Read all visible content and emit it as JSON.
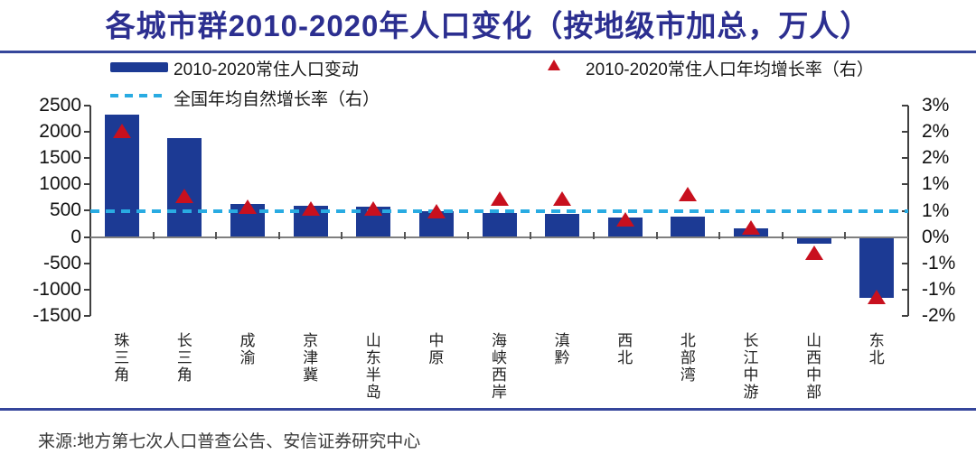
{
  "title": "各城市群2010-2020年人口变化（按地级市加总，万人）",
  "source": "来源:地方第七次人口普查公告、安信证券研究中心",
  "legend": {
    "bar_label": "2010-2020常住人口变动",
    "rate_label": "2010-2020常住人口年均增长率（右）",
    "natural_label": "全国年均自然增长率（右）"
  },
  "colors": {
    "bar": "#1C3A94",
    "triangle": "#C8101E",
    "dashed_line": "#29ABE2",
    "title": "#2C2F90",
    "rule": "#35469B",
    "zero_line": "#7F7F7F"
  },
  "chart_data": {
    "type": "bar",
    "title": "各城市群2010-2020年人口变化（按地级市加总，万人）",
    "categories": [
      "珠三角",
      "长三角",
      "成渝",
      "京津冀",
      "山东半岛",
      "中原",
      "海峡西岸",
      "滇黔",
      "西北",
      "北部湾",
      "长江中游",
      "山西中部",
      "东北"
    ],
    "series": [
      {
        "name": "2010-2020常住人口变动",
        "type": "bar",
        "axis": "left",
        "unit": "万人",
        "values": [
          2330,
          1880,
          620,
          600,
          570,
          490,
          460,
          440,
          375,
          390,
          165,
          -120,
          -1150
        ]
      },
      {
        "name": "2010-2020常住人口年均增长率（右）",
        "type": "scatter",
        "marker": "triangle",
        "axis": "right",
        "unit": "%",
        "values": [
          2.4,
          0.85,
          0.6,
          0.55,
          0.55,
          0.5,
          0.8,
          0.8,
          0.3,
          0.9,
          0.1,
          -0.5,
          -1.55
        ]
      },
      {
        "name": "全国年均自然增长率（右）",
        "type": "reference-line",
        "style": "dashed",
        "axis": "right",
        "unit": "%",
        "value": 0.5
      }
    ],
    "left_axis": {
      "ticks": [
        2500,
        2000,
        1500,
        1000,
        500,
        0,
        -500,
        -1000,
        -1500
      ],
      "range": [
        -1500,
        2500
      ]
    },
    "right_axis": {
      "tick_labels": [
        "3%",
        "2%",
        "2%",
        "1%",
        "1%",
        "0%",
        "-1%",
        "-1%",
        "-2%"
      ],
      "range_percent": [
        -2,
        3
      ]
    },
    "grid": false,
    "legend_position": "top"
  }
}
